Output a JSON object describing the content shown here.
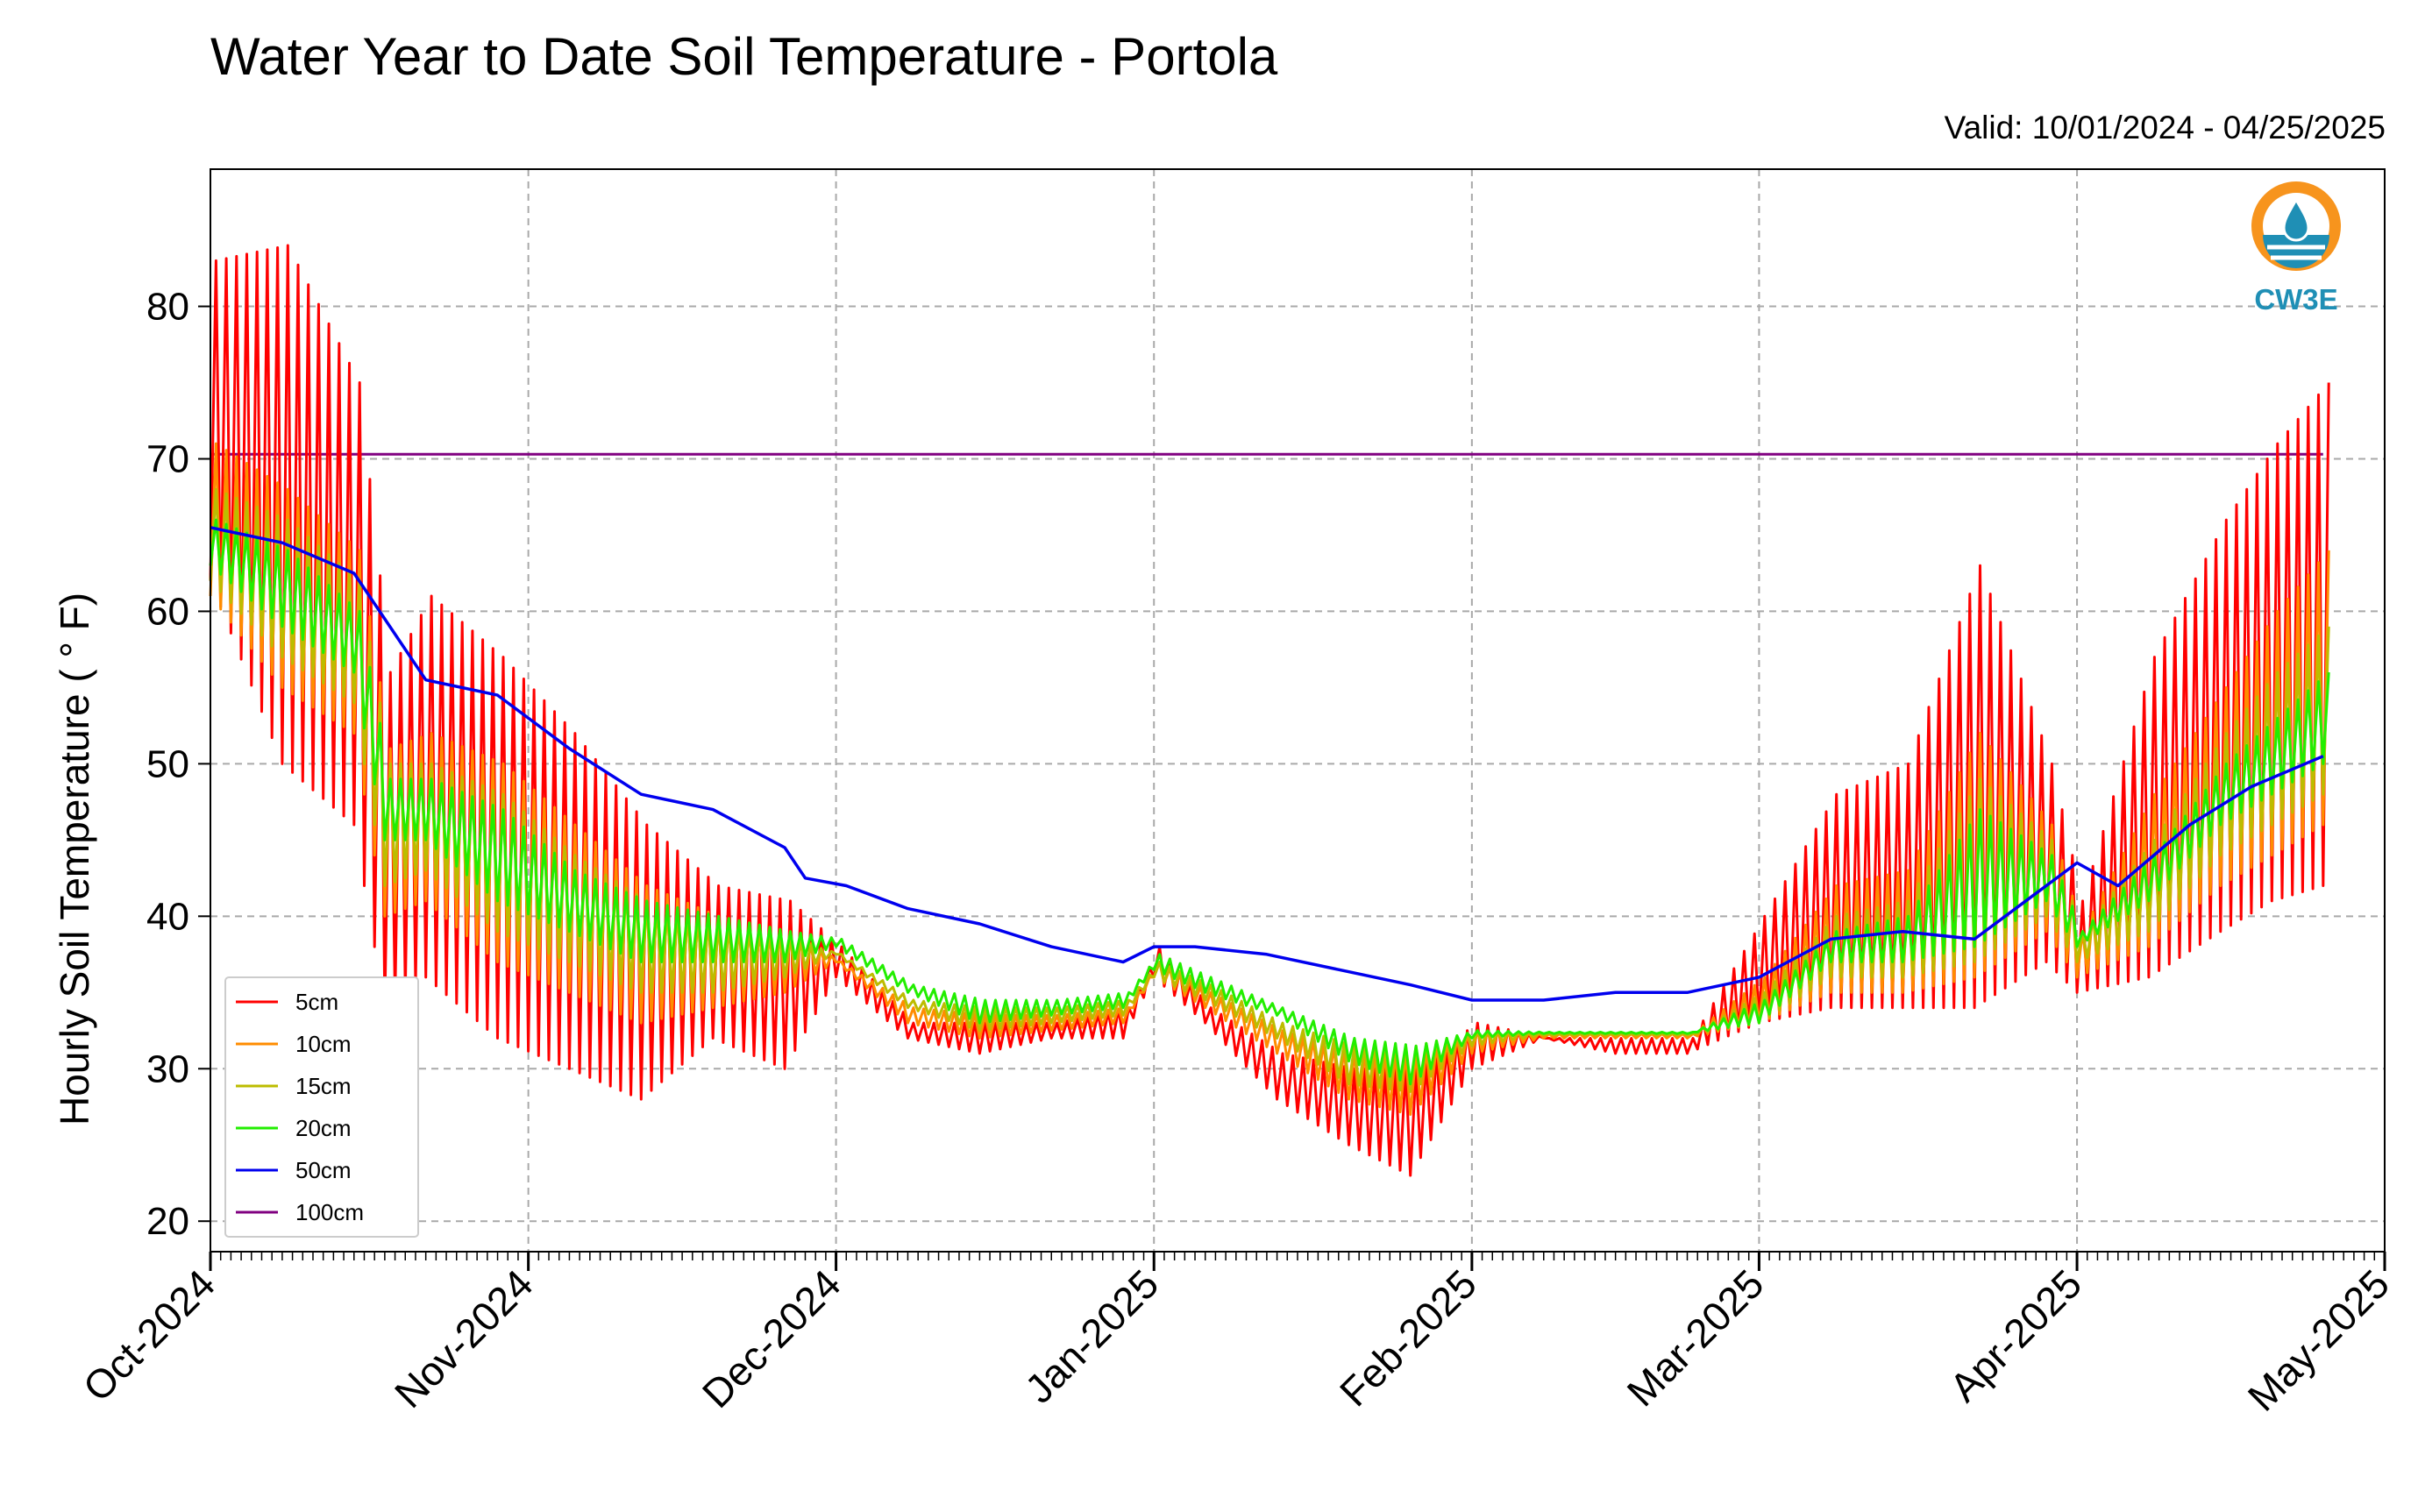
{
  "chart_data": {
    "type": "line",
    "title": "Water Year to Date Soil Temperature - Portola",
    "subtitle": "Valid: 10/01/2024 - 04/25/2025",
    "xlabel": "",
    "ylabel": "Hourly Soil Temperature ( ° F)",
    "xlim": [
      "2024-10-01",
      "2025-05-01"
    ],
    "ylim": [
      18,
      89
    ],
    "x_ticks": [
      "Oct-2024",
      "Nov-2024",
      "Dec-2024",
      "Jan-2025",
      "Feb-2025",
      "Mar-2025",
      "Apr-2025",
      "May-2025"
    ],
    "x_tick_dates": [
      "2024-10-01",
      "2024-11-01",
      "2024-12-01",
      "2025-01-01",
      "2025-02-01",
      "2025-03-01",
      "2025-04-01",
      "2025-05-01"
    ],
    "y_ticks": [
      20,
      30,
      40,
      50,
      60,
      70,
      80
    ],
    "grid": true,
    "legend_position": "lower-left",
    "colors": {
      "5cm": "#ff0000",
      "10cm": "#ff8c00",
      "15cm": "#bcbc00",
      "20cm": "#22ee00",
      "50cm": "#0000ee",
      "100cm": "#800080"
    },
    "series": [
      {
        "name": "5cm",
        "note": "daily min / max",
        "x": [
          "2024-10-01",
          "2024-10-08",
          "2024-10-15",
          "2024-10-18",
          "2024-10-22",
          "2024-10-29",
          "2024-11-05",
          "2024-11-12",
          "2024-11-19",
          "2024-11-26",
          "2024-12-01",
          "2024-12-08",
          "2024-12-15",
          "2024-12-22",
          "2024-12-29",
          "2025-01-01",
          "2025-01-06",
          "2025-01-13",
          "2025-01-20",
          "2025-01-26",
          "2025-02-01",
          "2025-02-08",
          "2025-02-15",
          "2025-02-22",
          "2025-03-01",
          "2025-03-08",
          "2025-03-15",
          "2025-03-22",
          "2025-03-29",
          "2025-04-01",
          "2025-04-08",
          "2025-04-15",
          "2025-04-20",
          "2025-04-25"
        ],
        "min": [
          62,
          50,
          46,
          34,
          36,
          32,
          30,
          28,
          32,
          30,
          36,
          32,
          31,
          32,
          32,
          36,
          33,
          28,
          25,
          23,
          30,
          32,
          31,
          31,
          33,
          34,
          34,
          34,
          37,
          35,
          36,
          39,
          41,
          42
        ],
        "max": [
          83,
          84,
          75,
          56,
          61,
          57,
          52,
          46,
          42,
          41,
          38,
          33,
          33,
          33,
          34,
          38,
          34,
          31,
          30,
          30,
          33,
          32,
          32,
          32,
          40,
          48,
          50,
          63,
          50,
          41,
          57,
          66,
          71,
          75
        ]
      },
      {
        "name": "10cm",
        "x": [
          "2024-10-01",
          "2024-10-08",
          "2024-10-15",
          "2024-10-18",
          "2024-10-22",
          "2024-10-29",
          "2024-11-05",
          "2024-11-12",
          "2024-11-19",
          "2024-11-26",
          "2024-12-01",
          "2024-12-08",
          "2024-12-15",
          "2024-12-22",
          "2024-12-29",
          "2025-01-01",
          "2025-01-06",
          "2025-01-13",
          "2025-01-20",
          "2025-01-26",
          "2025-02-01",
          "2025-02-08",
          "2025-02-15",
          "2025-02-22",
          "2025-03-01",
          "2025-03-08",
          "2025-03-15",
          "2025-03-22",
          "2025-03-29",
          "2025-04-01",
          "2025-04-08",
          "2025-04-15",
          "2025-04-20",
          "2025-04-25"
        ],
        "min": [
          61,
          55,
          52,
          40,
          41,
          37,
          35,
          33,
          34,
          35,
          37,
          33,
          32,
          32.5,
          33,
          36,
          34,
          31,
          28,
          27,
          31,
          32,
          32,
          32,
          33,
          35,
          35,
          36,
          39,
          36,
          38,
          42,
          44,
          46
        ],
        "max": [
          71,
          68,
          64,
          51,
          52,
          50,
          46,
          42,
          40,
          39,
          37,
          34,
          33.5,
          33.5,
          34,
          37,
          35,
          32.5,
          31,
          31,
          32.5,
          32.3,
          32.3,
          32.3,
          36,
          42,
          43,
          52,
          46,
          39,
          48,
          55,
          60,
          64
        ]
      },
      {
        "name": "15cm",
        "x": [
          "2024-10-01",
          "2024-10-08",
          "2024-10-15",
          "2024-10-18",
          "2024-10-22",
          "2024-10-29",
          "2024-11-05",
          "2024-11-12",
          "2024-11-19",
          "2024-11-26",
          "2024-12-01",
          "2024-12-08",
          "2024-12-15",
          "2024-12-22",
          "2024-12-29",
          "2025-01-01",
          "2025-01-06",
          "2025-01-13",
          "2025-01-20",
          "2025-01-26",
          "2025-02-01",
          "2025-02-08",
          "2025-02-15",
          "2025-02-22",
          "2025-03-01",
          "2025-03-08",
          "2025-03-15",
          "2025-03-22",
          "2025-03-29",
          "2025-04-01",
          "2025-04-08",
          "2025-04-15",
          "2025-04-20",
          "2025-04-25"
        ],
        "min": [
          62,
          57,
          54,
          42,
          43,
          39,
          37,
          35,
          35,
          36,
          37.5,
          34,
          32.5,
          33,
          33.5,
          36,
          34.5,
          32,
          29,
          28.5,
          31.5,
          32.2,
          32.2,
          32.2,
          33,
          36,
          36,
          37,
          40,
          37,
          39,
          44,
          46,
          48
        ],
        "max": [
          68,
          66,
          62,
          50,
          50,
          48,
          44,
          41,
          39.5,
          38.5,
          37.5,
          34.5,
          34,
          34,
          34.5,
          37,
          35.5,
          33,
          31.5,
          31.5,
          32.5,
          32.3,
          32.3,
          32.3,
          35,
          40,
          41,
          49,
          45,
          39,
          45,
          52,
          56,
          59
        ]
      },
      {
        "name": "20cm",
        "x": [
          "2024-10-01",
          "2024-10-08",
          "2024-10-15",
          "2024-10-18",
          "2024-10-22",
          "2024-10-29",
          "2024-11-05",
          "2024-11-12",
          "2024-11-19",
          "2024-11-26",
          "2024-12-01",
          "2024-12-08",
          "2024-12-15",
          "2024-12-22",
          "2024-12-29",
          "2025-01-01",
          "2025-01-06",
          "2025-01-13",
          "2025-01-20",
          "2025-01-26",
          "2025-02-01",
          "2025-02-08",
          "2025-02-15",
          "2025-02-22",
          "2025-03-01",
          "2025-03-08",
          "2025-03-15",
          "2025-03-22",
          "2025-03-29",
          "2025-04-01",
          "2025-04-08",
          "2025-04-15",
          "2025-04-20",
          "2025-04-25"
        ],
        "min": [
          63,
          59,
          56,
          45,
          45,
          41,
          39,
          37,
          37,
          37,
          38,
          35,
          33,
          33.5,
          34,
          36.5,
          35,
          33.5,
          30.5,
          29,
          32,
          32.3,
          32.3,
          32.3,
          33,
          37,
          37,
          38,
          41,
          38,
          41,
          46,
          48,
          50
        ],
        "max": [
          66,
          64,
          60,
          49,
          49,
          47,
          43,
          41,
          40,
          39,
          38.5,
          35.5,
          34.5,
          34.5,
          35,
          37.5,
          36,
          34,
          32,
          31.5,
          32.5,
          32.4,
          32.4,
          32.4,
          34.5,
          39,
          40,
          47,
          44,
          39,
          44,
          50,
          53,
          56
        ]
      },
      {
        "name": "50cm",
        "x": [
          "2024-10-01",
          "2024-10-08",
          "2024-10-15",
          "2024-10-22",
          "2024-10-29",
          "2024-11-05",
          "2024-11-12",
          "2024-11-19",
          "2024-11-26",
          "2024-11-28",
          "2024-12-02",
          "2024-12-08",
          "2024-12-15",
          "2024-12-22",
          "2024-12-29",
          "2025-01-01",
          "2025-01-05",
          "2025-01-12",
          "2025-01-19",
          "2025-01-26",
          "2025-02-01",
          "2025-02-08",
          "2025-02-15",
          "2025-02-22",
          "2025-03-01",
          "2025-03-08",
          "2025-03-15",
          "2025-03-22",
          "2025-03-28",
          "2025-04-01",
          "2025-04-05",
          "2025-04-12",
          "2025-04-18",
          "2025-04-25"
        ],
        "values": [
          65.5,
          64.5,
          62.5,
          55.5,
          54.5,
          51,
          48,
          47,
          44.5,
          42.5,
          42,
          40.5,
          39.5,
          38,
          37,
          38,
          38,
          37.5,
          36.5,
          35.5,
          34.5,
          34.5,
          35,
          35,
          36,
          38.5,
          39,
          38.5,
          41.5,
          43.5,
          42,
          46,
          48.5,
          50.5
        ]
      },
      {
        "name": "100cm",
        "x": [
          "2024-10-01",
          "2025-04-25"
        ],
        "values": [
          70.3,
          70.3
        ]
      }
    ]
  },
  "logo": {
    "text": "CW3E"
  }
}
